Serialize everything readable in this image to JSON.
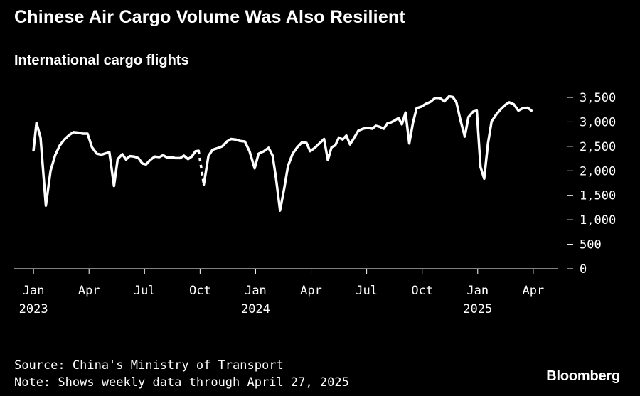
{
  "title": "Chinese Air Cargo Volume Was Also Resilient",
  "subtitle": "International cargo flights",
  "source": "Source: China's Ministry of Transport",
  "note": "Note: Shows weekly data through April 27, 2025",
  "brand": "Bloomberg",
  "colors": {
    "background": "#000000",
    "line": "#ffffff",
    "text": "#ffffff"
  },
  "chart_data": {
    "type": "line",
    "title": "Chinese Air Cargo Volume Was Also Resilient",
    "subtitle": "International cargo flights",
    "xlabel": "",
    "ylabel": "",
    "ylim": [
      0,
      3500
    ],
    "yticks": [
      {
        "value": 0,
        "label": "0"
      },
      {
        "value": 500,
        "label": "500"
      },
      {
        "value": 1000,
        "label": "1,000"
      },
      {
        "value": 1500,
        "label": "1,500"
      },
      {
        "value": 2000,
        "label": "2,000"
      },
      {
        "value": 2500,
        "label": "2,500"
      },
      {
        "value": 3000,
        "label": "3,000"
      },
      {
        "value": 3500,
        "label": "3,500"
      }
    ],
    "x_unit": "months since Jan 2023",
    "xlim": [
      -0.35,
      28.35
    ],
    "xticks": [
      {
        "x": 0,
        "label": "Jan",
        "year": "2023"
      },
      {
        "x": 3,
        "label": "Apr",
        "year": ""
      },
      {
        "x": 6,
        "label": "Jul",
        "year": ""
      },
      {
        "x": 9,
        "label": "Oct",
        "year": ""
      },
      {
        "x": 12,
        "label": "Jan",
        "year": "2024"
      },
      {
        "x": 15,
        "label": "Apr",
        "year": ""
      },
      {
        "x": 18,
        "label": "Jul",
        "year": ""
      },
      {
        "x": 21,
        "label": "Oct",
        "year": ""
      },
      {
        "x": 24,
        "label": "Jan",
        "year": "2025"
      },
      {
        "x": 27,
        "label": "Apr",
        "year": ""
      }
    ],
    "series": [
      {
        "name": "International cargo flights",
        "segments": [
          {
            "style": "solid",
            "points": [
              [
                0.0,
                2420
              ],
              [
                0.16,
                2980
              ],
              [
                0.38,
                2680
              ],
              [
                0.67,
                1290
              ],
              [
                0.92,
                2000
              ],
              [
                1.17,
                2320
              ],
              [
                1.42,
                2520
              ],
              [
                1.67,
                2640
              ],
              [
                1.92,
                2730
              ],
              [
                2.16,
                2790
              ],
              [
                2.42,
                2780
              ],
              [
                2.67,
                2760
              ],
              [
                2.92,
                2760
              ],
              [
                3.16,
                2480
              ],
              [
                3.42,
                2350
              ],
              [
                3.67,
                2330
              ],
              [
                3.92,
                2360
              ],
              [
                4.1,
                2380
              ],
              [
                4.35,
                1690
              ],
              [
                4.55,
                2240
              ],
              [
                4.8,
                2340
              ],
              [
                5.0,
                2230
              ],
              [
                5.2,
                2300
              ],
              [
                5.45,
                2290
              ],
              [
                5.67,
                2260
              ],
              [
                5.88,
                2150
              ],
              [
                6.08,
                2130
              ],
              [
                6.3,
                2220
              ],
              [
                6.55,
                2290
              ],
              [
                6.8,
                2280
              ],
              [
                7.0,
                2320
              ],
              [
                7.22,
                2270
              ],
              [
                7.45,
                2280
              ],
              [
                7.67,
                2260
              ],
              [
                7.92,
                2260
              ],
              [
                8.12,
                2310
              ],
              [
                8.35,
                2240
              ],
              [
                8.55,
                2290
              ],
              [
                8.75,
                2400
              ],
              [
                8.92,
                2410
              ]
            ]
          },
          {
            "style": "dashed",
            "points": [
              [
                8.92,
                2410
              ],
              [
                9.2,
                1720
              ]
            ]
          },
          {
            "style": "solid",
            "points": [
              [
                9.2,
                1720
              ],
              [
                9.45,
                2300
              ],
              [
                9.67,
                2430
              ],
              [
                9.92,
                2460
              ],
              [
                10.2,
                2500
              ],
              [
                10.45,
                2600
              ],
              [
                10.67,
                2650
              ],
              [
                10.92,
                2640
              ],
              [
                11.16,
                2610
              ],
              [
                11.42,
                2600
              ],
              [
                11.67,
                2400
              ],
              [
                11.95,
                2050
              ],
              [
                12.16,
                2350
              ],
              [
                12.45,
                2400
              ],
              [
                12.7,
                2470
              ],
              [
                12.92,
                2310
              ],
              [
                13.1,
                1850
              ],
              [
                13.32,
                1190
              ],
              [
                13.55,
                1650
              ],
              [
                13.75,
                2100
              ],
              [
                14.0,
                2350
              ],
              [
                14.25,
                2480
              ],
              [
                14.5,
                2580
              ],
              [
                14.75,
                2570
              ],
              [
                14.95,
                2400
              ],
              [
                15.2,
                2470
              ],
              [
                15.45,
                2560
              ],
              [
                15.7,
                2650
              ],
              [
                15.9,
                2220
              ],
              [
                16.1,
                2480
              ],
              [
                16.3,
                2520
              ],
              [
                16.5,
                2680
              ],
              [
                16.7,
                2640
              ],
              [
                16.9,
                2720
              ],
              [
                17.1,
                2540
              ],
              [
                17.3,
                2660
              ],
              [
                17.55,
                2820
              ],
              [
                17.8,
                2860
              ],
              [
                18.05,
                2880
              ],
              [
                18.3,
                2860
              ],
              [
                18.5,
                2920
              ],
              [
                18.7,
                2900
              ],
              [
                18.92,
                2860
              ],
              [
                19.12,
                2970
              ],
              [
                19.32,
                2990
              ],
              [
                19.52,
                3030
              ],
              [
                19.72,
                3080
              ],
              [
                19.9,
                2950
              ],
              [
                20.1,
                3190
              ],
              [
                20.3,
                2560
              ],
              [
                20.5,
                2980
              ],
              [
                20.7,
                3280
              ],
              [
                20.95,
                3310
              ],
              [
                21.2,
                3370
              ],
              [
                21.45,
                3410
              ],
              [
                21.7,
                3490
              ],
              [
                21.95,
                3490
              ],
              [
                22.2,
                3420
              ],
              [
                22.45,
                3520
              ],
              [
                22.65,
                3510
              ],
              [
                22.85,
                3400
              ],
              [
                23.05,
                3060
              ],
              [
                23.3,
                2700
              ],
              [
                23.5,
                3100
              ],
              [
                23.75,
                3210
              ],
              [
                23.95,
                3230
              ],
              [
                24.15,
                2080
              ],
              [
                24.35,
                1840
              ],
              [
                24.55,
                2550
              ],
              [
                24.75,
                3010
              ],
              [
                25.0,
                3150
              ],
              [
                25.25,
                3260
              ],
              [
                25.5,
                3350
              ],
              [
                25.7,
                3400
              ],
              [
                25.95,
                3360
              ],
              [
                26.2,
                3230
              ],
              [
                26.45,
                3280
              ],
              [
                26.7,
                3290
              ],
              [
                26.9,
                3230
              ]
            ]
          }
        ]
      }
    ]
  }
}
